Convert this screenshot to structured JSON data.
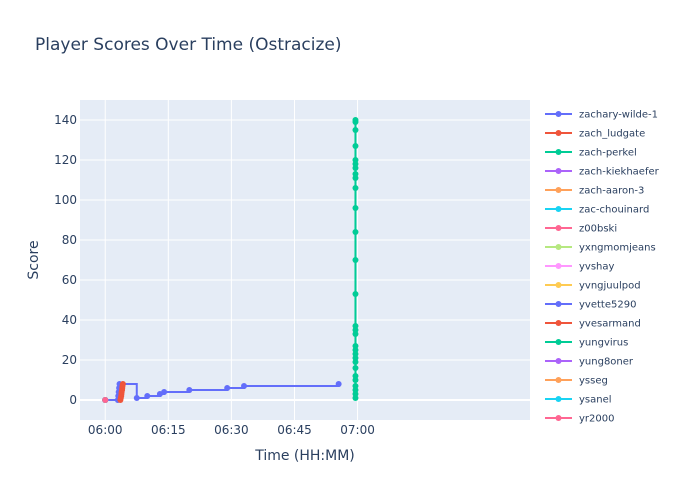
{
  "chart_data": {
    "type": "line",
    "title": "Player Scores Over Time (Ostracize)",
    "xlabel": "Time (HH:MM)",
    "ylabel": "Score",
    "xlim": [
      -6,
      101
    ],
    "ylim": [
      -10,
      150
    ],
    "x_unit": "minutes after 06:00",
    "x_ticks": [
      {
        "v": 0,
        "label": "06:00"
      },
      {
        "v": 15,
        "label": "06:15"
      },
      {
        "v": 30,
        "label": "06:30"
      },
      {
        "v": 45,
        "label": "06:45"
      },
      {
        "v": 60,
        "label": "07:00"
      }
    ],
    "y_ticks": [
      0,
      20,
      40,
      60,
      80,
      100,
      120,
      140
    ],
    "legend": [
      "zachary-wilde-1",
      "zach_ludgate",
      "zach-perkel",
      "zach-kiekhaefer",
      "zach-aaron-3",
      "zac-chouinard",
      "z00bski",
      "yxngmomjeans",
      "yvshay",
      "yvngjuulpod",
      "yvette5290",
      "yvesarmand",
      "yungvirus",
      "yung8oner",
      "ysseg",
      "ysanel",
      "yr2000"
    ],
    "series": [
      {
        "name": "zachary-wilde-1",
        "color": "#636efa",
        "line": "hv",
        "points": [
          [
            0,
            0
          ],
          [
            3.0,
            0
          ],
          [
            3.1,
            2
          ],
          [
            3.2,
            4
          ],
          [
            3.3,
            6
          ],
          [
            3.4,
            8
          ],
          [
            7.5,
            1
          ],
          [
            10,
            2
          ],
          [
            13,
            3
          ],
          [
            14,
            4
          ],
          [
            20,
            5
          ],
          [
            29,
            6
          ],
          [
            33,
            7
          ],
          [
            55.5,
            8
          ]
        ]
      },
      {
        "name": "zach_ludgate",
        "color": "#ef553b",
        "line": "linear",
        "points": [
          [
            3.6,
            0
          ],
          [
            3.7,
            1
          ],
          [
            3.8,
            2
          ],
          [
            3.85,
            3
          ],
          [
            3.9,
            4
          ],
          [
            4.0,
            5
          ],
          [
            4.05,
            6
          ],
          [
            4.1,
            7
          ],
          [
            4.2,
            8
          ]
        ]
      },
      {
        "name": "zach-perkel",
        "color": "#00cc96",
        "line": "linear",
        "points": [
          [
            59.5,
            1
          ],
          [
            59.5,
            3
          ],
          [
            59.5,
            5
          ],
          [
            59.5,
            7
          ],
          [
            59.5,
            10
          ],
          [
            59.5,
            12
          ],
          [
            59.5,
            16
          ],
          [
            59.5,
            19
          ],
          [
            59.5,
            21
          ],
          [
            59.5,
            23
          ],
          [
            59.5,
            25
          ],
          [
            59.5,
            27
          ],
          [
            59.5,
            33
          ],
          [
            59.5,
            35
          ],
          [
            59.5,
            37
          ],
          [
            59.5,
            53
          ],
          [
            59.5,
            70
          ],
          [
            59.5,
            84
          ],
          [
            59.5,
            96
          ],
          [
            59.5,
            106
          ],
          [
            59.5,
            111
          ],
          [
            59.5,
            113
          ],
          [
            59.5,
            116
          ],
          [
            59.5,
            118
          ],
          [
            59.5,
            120
          ],
          [
            59.5,
            127
          ],
          [
            59.5,
            135
          ],
          [
            59.5,
            139
          ],
          [
            59.5,
            140
          ]
        ]
      },
      {
        "name": "zach-kiekhaefer",
        "color": "#ab63fa",
        "line": "linear",
        "points": [
          [
            0,
            0
          ]
        ]
      },
      {
        "name": "zach-aaron-3",
        "color": "#ffa15a",
        "line": "linear",
        "points": [
          [
            0,
            0
          ]
        ]
      },
      {
        "name": "zac-chouinard",
        "color": "#19d3f3",
        "line": "linear",
        "points": [
          [
            0,
            0
          ]
        ]
      },
      {
        "name": "z00bski",
        "color": "#ff6692",
        "line": "linear",
        "points": [
          [
            0,
            0
          ]
        ]
      },
      {
        "name": "yxngmomjeans",
        "color": "#b6e880",
        "line": "linear",
        "points": [
          [
            0,
            0
          ]
        ]
      },
      {
        "name": "yvshay",
        "color": "#ff97ff",
        "line": "linear",
        "points": [
          [
            0,
            0
          ]
        ]
      },
      {
        "name": "yvngjuulpod",
        "color": "#fecb52",
        "line": "linear",
        "points": [
          [
            0,
            0
          ]
        ]
      },
      {
        "name": "yvette5290",
        "color": "#636efa",
        "line": "linear",
        "points": [
          [
            0,
            0
          ]
        ]
      },
      {
        "name": "yvesarmand",
        "color": "#ef553b",
        "line": "linear",
        "points": [
          [
            0,
            0
          ]
        ]
      },
      {
        "name": "yungvirus",
        "color": "#00cc96",
        "line": "linear",
        "points": [
          [
            0,
            0
          ]
        ]
      },
      {
        "name": "yung8oner",
        "color": "#ab63fa",
        "line": "linear",
        "points": [
          [
            0,
            0
          ]
        ]
      },
      {
        "name": "ysseg",
        "color": "#ffa15a",
        "line": "linear",
        "points": [
          [
            0,
            0
          ]
        ]
      },
      {
        "name": "ysanel",
        "color": "#19d3f3",
        "line": "linear",
        "points": [
          [
            0,
            0
          ]
        ]
      },
      {
        "name": "yr2000",
        "color": "#ff6692",
        "line": "linear",
        "points": [
          [
            0,
            0
          ]
        ]
      }
    ],
    "grid": true,
    "legend_position": "right"
  }
}
